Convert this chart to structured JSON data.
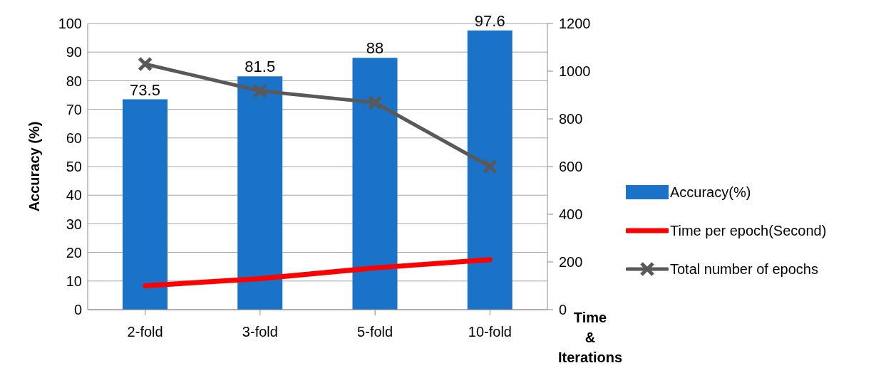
{
  "chart_data": {
    "type": "bar",
    "categories": [
      "2-fold",
      "3-fold",
      "5-fold",
      "10-fold"
    ],
    "ylabel": "Accuracy (%)",
    "y2label": "Time & Iterations",
    "ylim": [
      0,
      100
    ],
    "yticks": [
      0,
      10,
      20,
      30,
      40,
      50,
      60,
      70,
      80,
      90,
      100
    ],
    "y2lim": [
      0,
      1200
    ],
    "y2ticks": [
      0,
      200,
      400,
      600,
      800,
      1000,
      1200
    ],
    "grid": "y",
    "legend": "right",
    "series": [
      {
        "name": "Accuracy(%)",
        "color": "#1a73c8",
        "values": [
          73.5,
          81.5,
          88,
          97.6
        ],
        "value_labels": [
          "73.5",
          "81.5",
          "88",
          "97.6"
        ]
      },
      {
        "name": "Time per epoch(Second)",
        "type": "line",
        "axis": "y2",
        "color": "#ff0000",
        "marker": "none",
        "values": [
          100,
          130,
          175,
          210
        ]
      },
      {
        "name": "Total number of epochs",
        "type": "line",
        "axis": "y2",
        "color": "#595959",
        "marker": "cross",
        "values": [
          1030,
          917,
          868,
          600
        ]
      }
    ]
  }
}
